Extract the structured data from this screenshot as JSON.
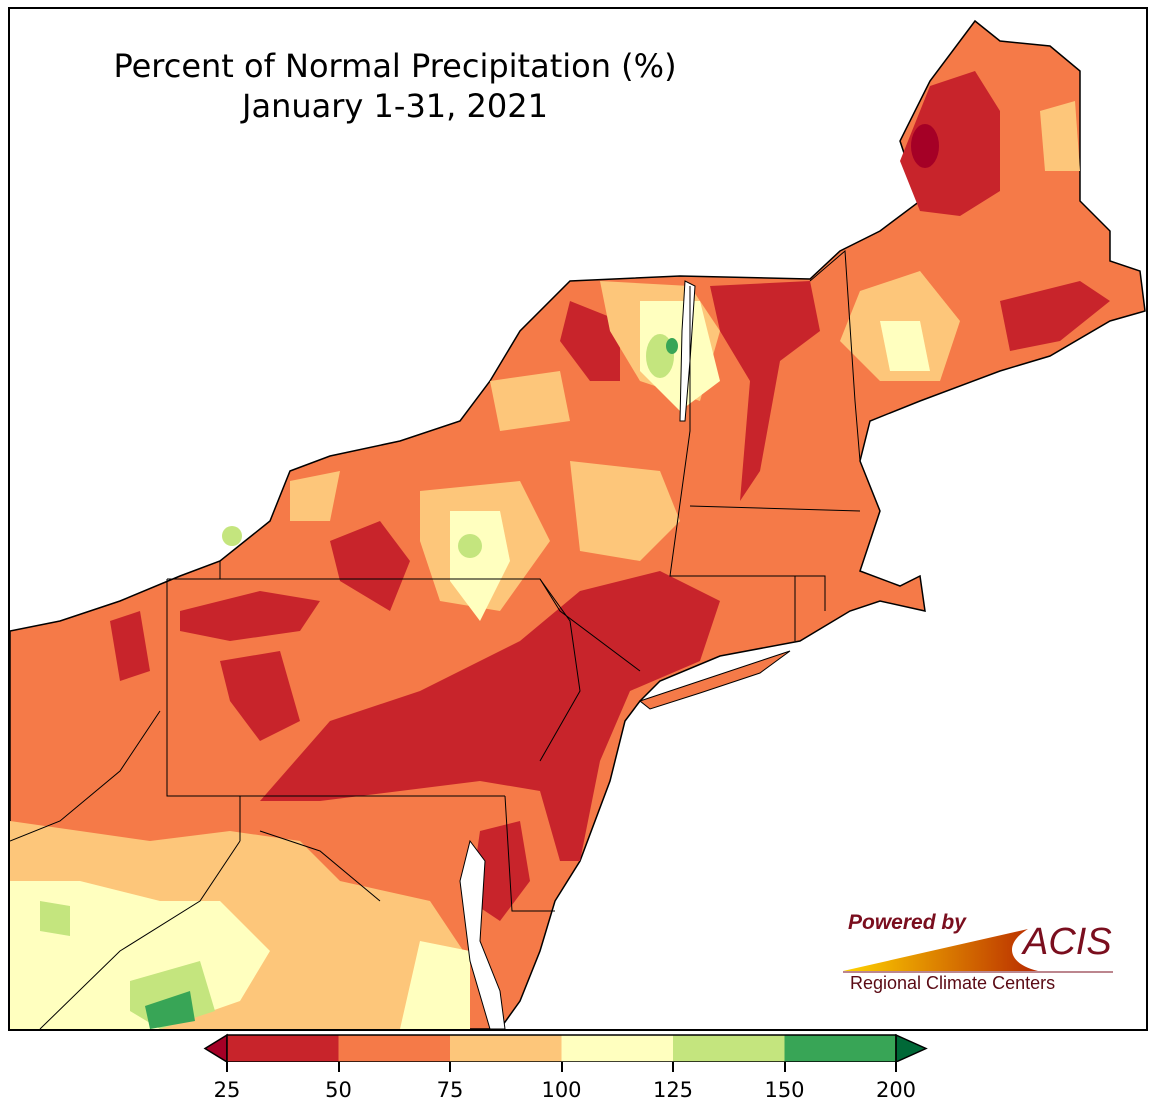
{
  "title": "Percent of Normal Precipitation (%)",
  "subtitle": "January 1-31, 2021",
  "legend": {
    "ticks": [
      "25",
      "50",
      "75",
      "100",
      "125",
      "150",
      "200"
    ],
    "bins": [
      {
        "range": "<25",
        "color": "#a50026"
      },
      {
        "range": "25-50",
        "color": "#c8242b"
      },
      {
        "range": "50-75",
        "color": "#f57a48"
      },
      {
        "range": "75-100",
        "color": "#fdc67a"
      },
      {
        "range": "100-125",
        "color": "#ffffbf"
      },
      {
        "range": "125-150",
        "color": "#c4e57e"
      },
      {
        "range": "150-200",
        "color": "#38a556"
      },
      {
        "range": ">200",
        "color": "#006837"
      }
    ]
  },
  "logo": {
    "powered_by": "Powered by",
    "brand": "ACIS",
    "org": "Regional Climate Centers"
  }
}
